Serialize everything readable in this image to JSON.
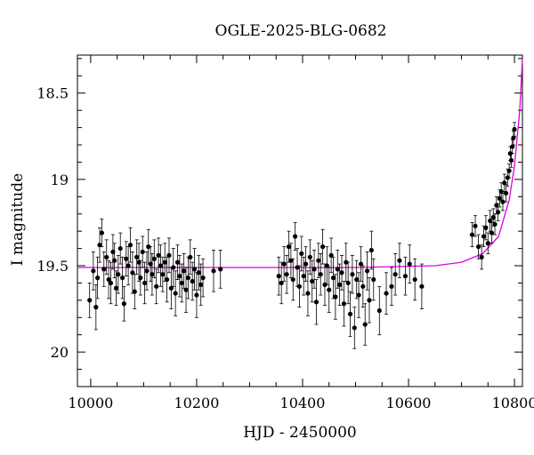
{
  "chart_data": {
    "type": "scatter",
    "title": "OGLE-2025-BLG-0682",
    "xlabel": "HJD - 2450000",
    "ylabel": "I magnitude",
    "xlim": [
      9975,
      10815
    ],
    "ylim": [
      20.2,
      18.28
    ],
    "y_inverted": true,
    "grid": false,
    "x_ticks": [
      10000,
      10200,
      10400,
      10600,
      10800
    ],
    "x_tick_labels": [
      "10000",
      "10200",
      "10400",
      "10600",
      "10800"
    ],
    "y_ticks": [
      18.5,
      19,
      19.5,
      20
    ],
    "y_tick_labels": [
      "18.5",
      "19",
      "19.5",
      "20"
    ],
    "model_curve": {
      "color": "#e000e0",
      "description_points": [
        [
          9975,
          19.51
        ],
        [
          10500,
          19.51
        ],
        [
          10650,
          19.5
        ],
        [
          10700,
          19.48
        ],
        [
          10740,
          19.43
        ],
        [
          10770,
          19.33
        ],
        [
          10790,
          19.12
        ],
        [
          10800,
          18.92
        ],
        [
          10810,
          18.6
        ],
        [
          10815,
          18.3
        ]
      ]
    },
    "series": [
      {
        "marker_color": "#000000",
        "points": [
          [
            9998,
            19.7,
            0.1
          ],
          [
            10005,
            19.53,
            0.11
          ],
          [
            10010,
            19.74,
            0.13
          ],
          [
            10013,
            19.57,
            0.12
          ],
          [
            10017,
            19.38,
            0.1
          ],
          [
            10021,
            19.31,
            0.08
          ],
          [
            10025,
            19.52,
            0.1
          ],
          [
            10030,
            19.45,
            0.1
          ],
          [
            10034,
            19.58,
            0.11
          ],
          [
            10038,
            19.6,
            0.12
          ],
          [
            10042,
            19.42,
            0.1
          ],
          [
            10045,
            19.47,
            0.1
          ],
          [
            10048,
            19.63,
            0.1
          ],
          [
            10052,
            19.55,
            0.11
          ],
          [
            10056,
            19.4,
            0.09
          ],
          [
            10060,
            19.57,
            0.12
          ],
          [
            10063,
            19.72,
            0.1
          ],
          [
            10067,
            19.46,
            0.1
          ],
          [
            10071,
            19.5,
            0.11
          ],
          [
            10075,
            19.38,
            0.1
          ],
          [
            10079,
            19.54,
            0.12
          ],
          [
            10083,
            19.65,
            0.1
          ],
          [
            10087,
            19.45,
            0.1
          ],
          [
            10091,
            19.48,
            0.11
          ],
          [
            10094,
            19.57,
            0.1
          ],
          [
            10098,
            19.42,
            0.09
          ],
          [
            10102,
            19.6,
            0.12
          ],
          [
            10106,
            19.53,
            0.11
          ],
          [
            10109,
            19.39,
            0.1
          ],
          [
            10113,
            19.49,
            0.1
          ],
          [
            10116,
            19.55,
            0.12
          ],
          [
            10120,
            19.46,
            0.11
          ],
          [
            10124,
            19.62,
            0.1
          ],
          [
            10128,
            19.44,
            0.1
          ],
          [
            10132,
            19.5,
            0.12
          ],
          [
            10136,
            19.55,
            0.1
          ],
          [
            10140,
            19.48,
            0.11
          ],
          [
            10144,
            19.58,
            0.13
          ],
          [
            10148,
            19.44,
            0.1
          ],
          [
            10152,
            19.63,
            0.12
          ],
          [
            10156,
            19.51,
            0.11
          ],
          [
            10160,
            19.66,
            0.13
          ],
          [
            10164,
            19.48,
            0.1
          ],
          [
            10168,
            19.56,
            0.12
          ],
          [
            10172,
            19.6,
            0.11
          ],
          [
            10176,
            19.53,
            0.1
          ],
          [
            10180,
            19.64,
            0.13
          ],
          [
            10184,
            19.57,
            0.12
          ],
          [
            10188,
            19.45,
            0.1
          ],
          [
            10192,
            19.59,
            0.11
          ],
          [
            10196,
            19.52,
            0.12
          ],
          [
            10200,
            19.67,
            0.13
          ],
          [
            10204,
            19.54,
            0.1
          ],
          [
            10208,
            19.61,
            0.12
          ],
          [
            10212,
            19.57,
            0.11
          ],
          [
            10232,
            19.53,
            0.12
          ],
          [
            10245,
            19.52,
            0.11
          ],
          [
            10355,
            19.56,
            0.11
          ],
          [
            10360,
            19.6,
            0.12
          ],
          [
            10365,
            19.49,
            0.1
          ],
          [
            10370,
            19.55,
            0.11
          ],
          [
            10374,
            19.39,
            0.09
          ],
          [
            10378,
            19.47,
            0.1
          ],
          [
            10382,
            19.58,
            0.12
          ],
          [
            10386,
            19.33,
            0.08
          ],
          [
            10390,
            19.51,
            0.11
          ],
          [
            10394,
            19.62,
            0.12
          ],
          [
            10398,
            19.43,
            0.1
          ],
          [
            10402,
            19.56,
            0.11
          ],
          [
            10406,
            19.49,
            0.1
          ],
          [
            10410,
            19.66,
            0.13
          ],
          [
            10414,
            19.45,
            0.1
          ],
          [
            10418,
            19.59,
            0.12
          ],
          [
            10422,
            19.52,
            0.11
          ],
          [
            10426,
            19.71,
            0.13
          ],
          [
            10430,
            19.47,
            0.1
          ],
          [
            10434,
            19.55,
            0.12
          ],
          [
            10438,
            19.39,
            0.1
          ],
          [
            10442,
            19.61,
            0.12
          ],
          [
            10446,
            19.5,
            0.11
          ],
          [
            10450,
            19.64,
            0.13
          ],
          [
            10454,
            19.44,
            0.1
          ],
          [
            10458,
            19.57,
            0.12
          ],
          [
            10462,
            19.68,
            0.13
          ],
          [
            10466,
            19.52,
            0.11
          ],
          [
            10470,
            19.61,
            0.12
          ],
          [
            10474,
            19.54,
            0.1
          ],
          [
            10478,
            19.72,
            0.13
          ],
          [
            10482,
            19.48,
            0.11
          ],
          [
            10486,
            19.6,
            0.12
          ],
          [
            10490,
            19.78,
            0.13
          ],
          [
            10494,
            19.55,
            0.11
          ],
          [
            10498,
            19.86,
            0.12
          ],
          [
            10502,
            19.58,
            0.11
          ],
          [
            10506,
            19.67,
            0.13
          ],
          [
            10510,
            19.49,
            0.1
          ],
          [
            10514,
            19.62,
            0.12
          ],
          [
            10518,
            19.84,
            0.12
          ],
          [
            10522,
            19.53,
            0.11
          ],
          [
            10526,
            19.7,
            0.13
          ],
          [
            10530,
            19.41,
            0.11
          ],
          [
            10534,
            19.58,
            0.12
          ],
          [
            10545,
            19.76,
            0.14
          ],
          [
            10558,
            19.66,
            0.12
          ],
          [
            10568,
            19.62,
            0.11
          ],
          [
            10575,
            19.55,
            0.12
          ],
          [
            10583,
            19.47,
            0.1
          ],
          [
            10594,
            19.56,
            0.11
          ],
          [
            10602,
            19.49,
            0.11
          ],
          [
            10612,
            19.58,
            0.12
          ],
          [
            10625,
            19.62,
            0.13
          ],
          [
            10720,
            19.32,
            0.07
          ],
          [
            10726,
            19.27,
            0.06
          ],
          [
            10732,
            19.39,
            0.07
          ],
          [
            10738,
            19.45,
            0.07
          ],
          [
            10742,
            19.33,
            0.06
          ],
          [
            10746,
            19.28,
            0.07
          ],
          [
            10750,
            19.37,
            0.06
          ],
          [
            10754,
            19.24,
            0.06
          ],
          [
            10757,
            19.31,
            0.06
          ],
          [
            10760,
            19.22,
            0.05
          ],
          [
            10763,
            19.26,
            0.06
          ],
          [
            10766,
            19.15,
            0.05
          ],
          [
            10769,
            19.19,
            0.05
          ],
          [
            10772,
            19.11,
            0.05
          ],
          [
            10775,
            19.07,
            0.05
          ],
          [
            10778,
            19.13,
            0.05
          ],
          [
            10781,
            19.02,
            0.05
          ],
          [
            10784,
            19.08,
            0.05
          ],
          [
            10787,
            18.99,
            0.05
          ],
          [
            10790,
            18.95,
            0.04
          ],
          [
            10792,
            18.85,
            0.04
          ],
          [
            10794,
            18.89,
            0.04
          ],
          [
            10796,
            18.81,
            0.04
          ],
          [
            10798,
            18.76,
            0.04
          ],
          [
            10800,
            18.71,
            0.04
          ]
        ]
      }
    ]
  }
}
